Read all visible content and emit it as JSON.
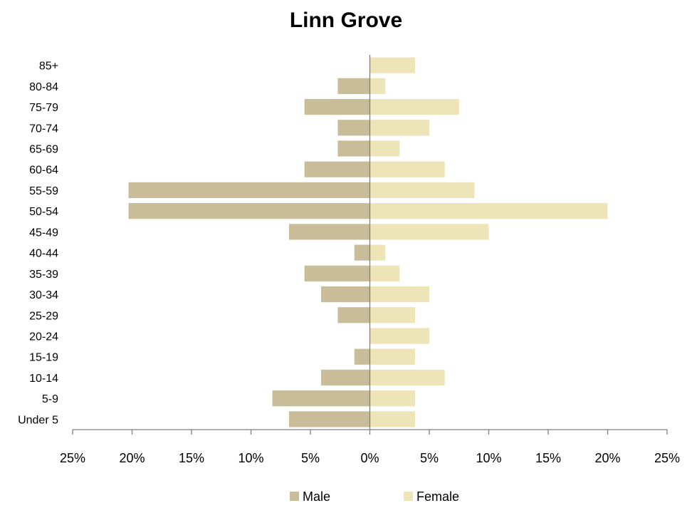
{
  "chart_data": {
    "type": "bar",
    "orientation": "horizontal",
    "subtype": "population-pyramid",
    "title": "Linn Grove",
    "categories": [
      "Under 5",
      "5-9",
      "10-14",
      "15-19",
      "20-24",
      "25-29",
      "30-34",
      "35-39",
      "40-44",
      "45-49",
      "50-54",
      "55-59",
      "60-64",
      "65-69",
      "70-74",
      "75-79",
      "80-84",
      "85+"
    ],
    "series": [
      {
        "name": "Male",
        "color": "#c8bd98",
        "values": [
          6.8,
          8.2,
          4.1,
          1.3,
          0.0,
          2.7,
          4.1,
          5.5,
          1.3,
          6.8,
          20.3,
          20.3,
          5.5,
          2.7,
          2.7,
          5.5,
          2.7,
          0.0
        ]
      },
      {
        "name": "Female",
        "color": "#ede4b8",
        "values": [
          3.8,
          3.8,
          6.3,
          3.8,
          5.0,
          3.8,
          5.0,
          2.5,
          1.3,
          10.0,
          20.0,
          8.8,
          6.3,
          2.5,
          5.0,
          7.5,
          1.3,
          3.8
        ]
      }
    ],
    "xticks": [
      "25%",
      "20%",
      "15%",
      "10%",
      "5%",
      "0%",
      "5%",
      "10%",
      "15%",
      "20%",
      "25%"
    ],
    "xlim": [
      -25,
      25
    ],
    "xlabel": "",
    "ylabel": "",
    "grid": false,
    "legend_position": "bottom"
  }
}
